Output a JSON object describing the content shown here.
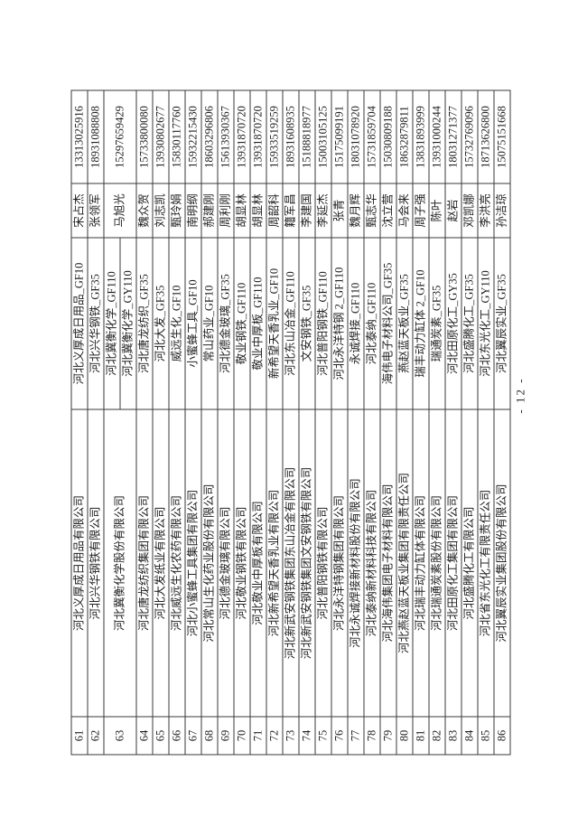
{
  "page": {
    "number_label": "- 12 -"
  },
  "table": {
    "rows": [
      {
        "no": "61",
        "company": "河北义厚成日用品有限公司",
        "products": [
          "河北义厚成日用品_GF10"
        ],
        "contact": "宋占杰",
        "phone": "13313025916"
      },
      {
        "no": "62",
        "company": "河北兴华钢铁有限公司",
        "products": [
          "河北兴华钢铁_GF35"
        ],
        "contact": "张领军",
        "phone": "18931088808"
      },
      {
        "no": "63",
        "company": "河北冀衡化学股份有限公司",
        "products": [
          "河北冀衡化学_GF110",
          "河北冀衡化学_GY110"
        ],
        "contact": "马旭光",
        "phone": "15297659429"
      },
      {
        "no": "64",
        "company": "河北唐龙纺织集团有限公司",
        "products": [
          "河北唐龙纺织_GF35"
        ],
        "contact": "魏众贺",
        "phone": "15733800080"
      },
      {
        "no": "65",
        "company": "河北大发纸业有限公司",
        "products": [
          "河北大发_GF35"
        ],
        "contact": "刘志凯",
        "phone": "13930802677"
      },
      {
        "no": "66",
        "company": "河北威远生化农药有限公司",
        "products": [
          "威远生化_GF10"
        ],
        "contact": "甄玲娟",
        "phone": "15830117760"
      },
      {
        "no": "67",
        "company": "河北小蜜蜂工具集团有限公司",
        "products": [
          "小蜜蜂工具_GF10"
        ],
        "contact": "南明纲",
        "phone": "15932215430"
      },
      {
        "no": "68",
        "company": "河北常山生化药业股份有限公司",
        "products": [
          "常山药业_GF10"
        ],
        "contact": "郝建刚",
        "phone": "18603296806"
      },
      {
        "no": "69",
        "company": "河北德金玻璃有限公司",
        "products": [
          "河北德金玻璃_GF35"
        ],
        "contact": "周利刚",
        "phone": "15613930367"
      },
      {
        "no": "70",
        "company": "河北敬业钢铁有限公司",
        "products": [
          "敬业钢铁_GF110"
        ],
        "contact": "胡显林",
        "phone": "13931870720"
      },
      {
        "no": "71",
        "company": "河北敬业中厚板有限公司",
        "products": [
          "敬业中厚板_GF110"
        ],
        "contact": "胡显林",
        "phone": "13931870720"
      },
      {
        "no": "72",
        "company": "河北新希望天香乳业有限公司",
        "products": [
          "新希望天香乳业_GF10"
        ],
        "contact": "周韶科",
        "phone": "15933519259"
      },
      {
        "no": "73",
        "company": "河北新武安钢铁集团东山冶金有限公司",
        "products": [
          "河北东山冶金_GF110"
        ],
        "contact": "籍军昌",
        "phone": "18931608935"
      },
      {
        "no": "74",
        "company": "河北新武安钢铁集团文安钢铁有限公司",
        "products": [
          "文安钢铁_GF35"
        ],
        "contact": "李建国",
        "phone": "15188818977"
      },
      {
        "no": "75",
        "company": "河北普阳钢铁有限公司",
        "products": [
          "河北普阳钢铁_GF110"
        ],
        "contact": "李延杰",
        "phone": "15003105125"
      },
      {
        "no": "76",
        "company": "河北永洋特钢集团有限公司",
        "products": [
          "河北永洋特钢 2_GF110"
        ],
        "contact": "张青",
        "phone": "15175099191"
      },
      {
        "no": "77",
        "company": "河北永诚焊接新材料股份有限公司",
        "products": [
          "永诚焊接_GF110"
        ],
        "contact": "魏月辉",
        "phone": "18031078920"
      },
      {
        "no": "78",
        "company": "河北泰纳新材料科技有限公司",
        "products": [
          "河北泰纳_GF110"
        ],
        "contact": "甄志华",
        "phone": "15731859704"
      },
      {
        "no": "79",
        "company": "河北海伟集团电子材料有限公司",
        "products": [
          "海伟电子材料公司_GF35"
        ],
        "contact": "沈立营",
        "phone": "15030809188"
      },
      {
        "no": "80",
        "company": "河北燕赵蓝天板业集团有限责任公司",
        "products": [
          "燕赵蓝天板业_GF35"
        ],
        "contact": "马会来",
        "phone": "18632879811"
      },
      {
        "no": "81",
        "company": "河北瑞丰动力缸体有限公司",
        "products": [
          "瑞丰动力缸体 2_GF10"
        ],
        "contact": "周子强",
        "phone": "13831893999"
      },
      {
        "no": "82",
        "company": "河北瑞通炭素股份有限公司",
        "products": [
          "瑞通炭素_GF35"
        ],
        "contact": "陈叶",
        "phone": "13931000244"
      },
      {
        "no": "83",
        "company": "河北田原化工集团有限公司",
        "products": [
          "河北田原化工_GY35"
        ],
        "contact": "赵岩",
        "phone": "18031271377"
      },
      {
        "no": "84",
        "company": "河北盛腾化工有限公司",
        "products": [
          "河北盛腾化工_GF35"
        ],
        "contact": "邓凯娜",
        "phone": "15732769096"
      },
      {
        "no": "85",
        "company": "河北省东光化工有限责任公司",
        "products": [
          "河北东光化工_GY110"
        ],
        "contact": "李洪亮",
        "phone": "18713626800"
      },
      {
        "no": "86",
        "company": "河北翼辰实业集团股份有限公司",
        "products": [
          "河北翼辰实业_GF35"
        ],
        "contact": "孙洁琼",
        "phone": "15075151668"
      }
    ]
  }
}
